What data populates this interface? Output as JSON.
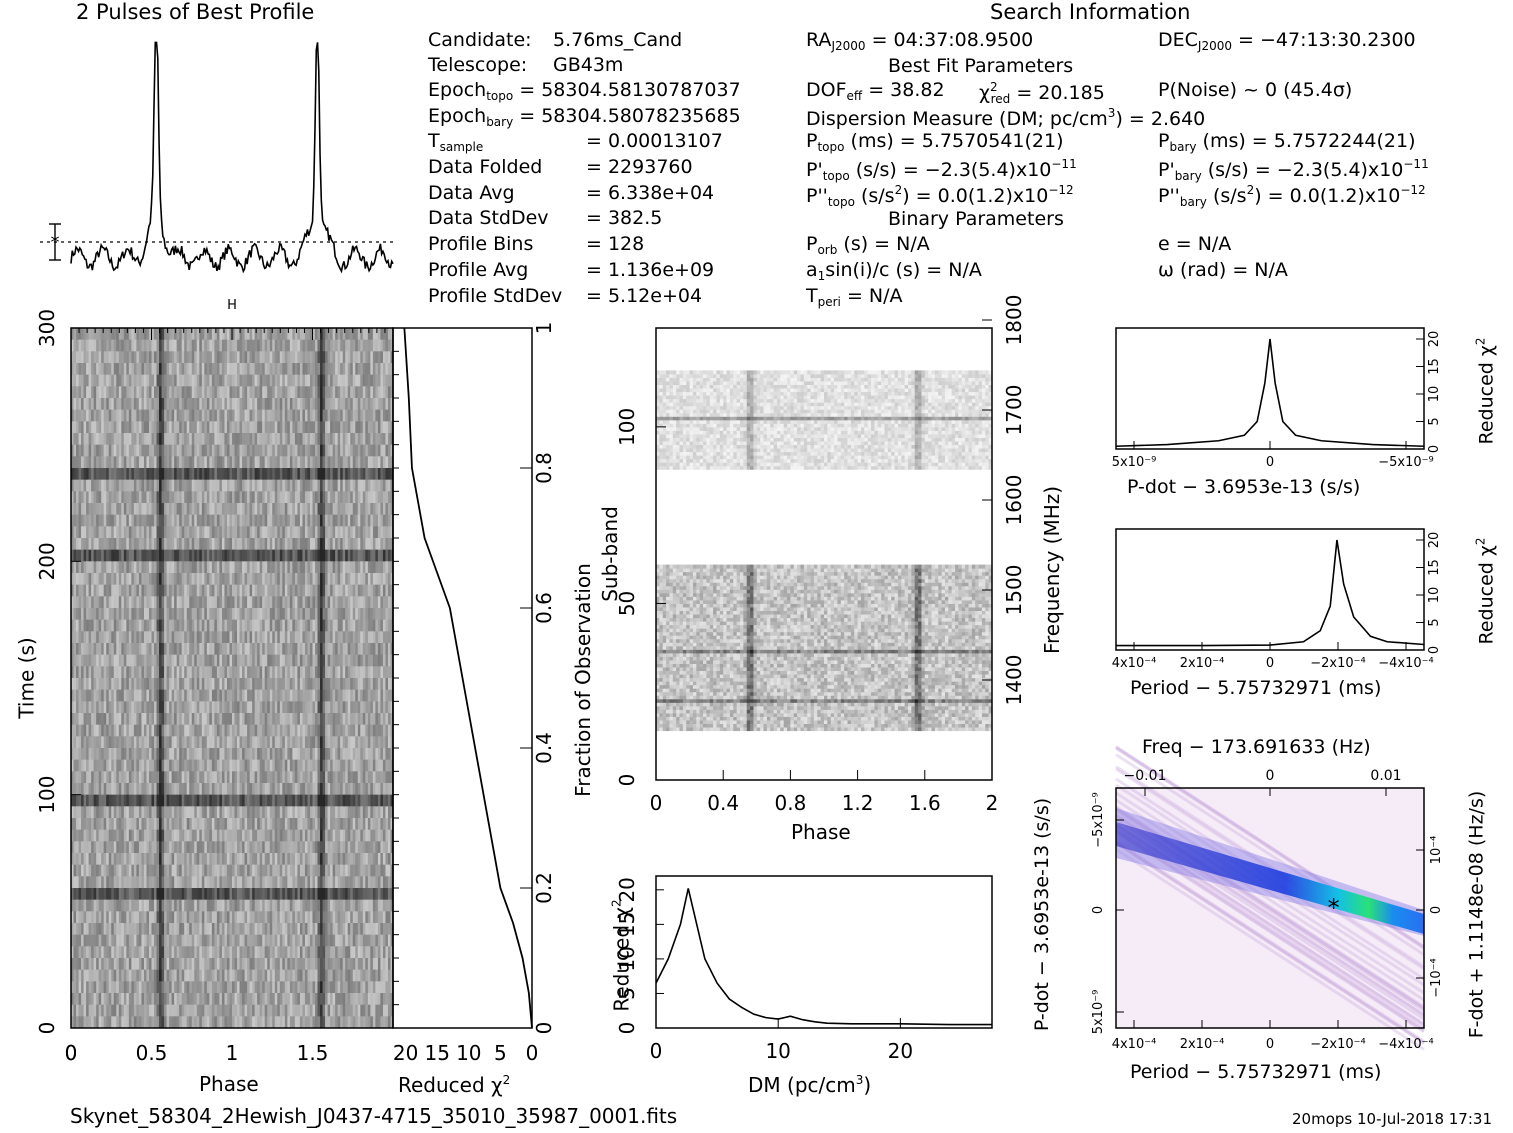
{
  "header": {
    "profile_title": "2 Pulses of Best Profile",
    "search_title": "Search Information",
    "bfp_title": "Best Fit Parameters",
    "binary_title": "Binary Parameters",
    "file_name": "Skynet_58304_2Hewish_J0437-4715_35010_35987_0001.fits",
    "footer_right": "20mops  10-Jul-2018 17:31"
  },
  "info": {
    "candidate_label": "Candidate:",
    "candidate": "5.76ms_Cand",
    "telescope_label": "Telescope:",
    "telescope": "GB43m",
    "epoch_topo_label": "Epoch",
    "epoch_topo_sub": "topo",
    "epoch_topo": "= 58304.58130787037",
    "epoch_bary_label": "Epoch",
    "epoch_bary_sub": "bary",
    "epoch_bary": "= 58304.58078235685",
    "tsample_label": "T",
    "tsample_sub": "sample",
    "tsample": "=   0.00013107",
    "folded_label": "Data Folded",
    "folded": "=   2293760",
    "avg_label": "Data Avg",
    "avg": "=   6.338e+04",
    "std_label": "Data StdDev",
    "std": "=   382.5",
    "bins_label": "Profile Bins",
    "bins": "=   128",
    "pavg_label": "Profile Avg",
    "pavg": "=   1.136e+09",
    "pstd_label": "Profile StdDev",
    "pstd": "=   5.12e+04"
  },
  "fit": {
    "ra_label": "RA",
    "ra_sub": "J2000",
    "ra": "= 04:37:08.9500",
    "dec_label": "DEC",
    "dec_sub": "J2000",
    "dec": "= −47:13:30.2300",
    "dof_label": "DOF",
    "dof_sub": "eff",
    "dof": "= 38.82",
    "chi_label": "χ",
    "chi_sup": "2",
    "chi_sub": "red",
    "chi": "= 20.185",
    "pnoise": "P(Noise) ~ 0    (45.4σ)",
    "dm_text": "Dispersion Measure (DM; pc/cm",
    "dm_sup": "3",
    "dm_val": ") = 2.640",
    "ptopo_label": "P",
    "ptopo_sub": "topo",
    "ptopo": "(ms) =  5.7570541(21)",
    "pbary_label": "P",
    "pbary_sub": "bary",
    "pbary": "(ms) =  5.7572244(21)",
    "pdtopo_label": "P'",
    "pdtopo_sub": "topo",
    "pdtopo": "(s/s) = −2.3(5.4)x10",
    "pdtopo_exp": "−11",
    "pdbary_label": "P'",
    "pdbary_sub": "bary",
    "pdbary": "(s/s) = −2.3(5.4)x10",
    "pdbary_exp": "−11",
    "pddtopo_label": "P''",
    "pddtopo_sub": "topo",
    "pddtopo": "(s/s",
    "pddtopo_sup": "2",
    "pddtopo_val": ") = 0.0(1.2)x10",
    "pddtopo_exp": "−12",
    "pddbary_label": "P''",
    "pddbary_sub": "bary",
    "pddbary": "(s/s",
    "pddbary_sup": "2",
    "pddbary_val": ") = 0.0(1.2)x10",
    "pddbary_exp": "−12",
    "porb_label": "P",
    "porb_sub": "orb",
    "porb": "(s) = N/A",
    "e": "e = N/A",
    "a1_label": "a",
    "a1_sub": "1",
    "a1": "sin(i)/c (s) = N/A",
    "omega": "ω (rad) = N/A",
    "tperi_label": "T",
    "tperi_sub": "peri",
    "tperi": "= N/A"
  },
  "axes": {
    "phase_label": "Phase",
    "time_label": "Time (s)",
    "redchi_label": "Reduced χ",
    "redchi_sup": "2",
    "frac_label": "Fraction of Observation",
    "subband_label": "Sub-band",
    "freq_label": "Frequency (MHz)",
    "dm_label": "DM (pc/cm",
    "dm_sup": "3",
    "pdot_label": "P-dot − 3.6953e-13 (s/s)",
    "period_label": "Period − 5.75732971 (ms)",
    "freq_top_label": "Freq − 173.691633 (Hz)",
    "fdot_label": "F-dot + 1.1148e-08 (Hz/s)"
  },
  "colors": {
    "ink": "#000000",
    "heat_low": "#f6ecf8",
    "heat_mid": "#3a3ad6",
    "heat_high": "#22e07a"
  },
  "chart_data": [
    {
      "type": "line",
      "title": "2 Pulses of Best Profile",
      "x": [
        0,
        0.25,
        0.45,
        0.5,
        0.52,
        0.55,
        0.6,
        0.75,
        1.0,
        1.25,
        1.45,
        1.5,
        1.52,
        1.55,
        1.6,
        1.75,
        2.0
      ],
      "y": [
        0.1,
        0.12,
        0.25,
        0.7,
        1.0,
        0.7,
        0.28,
        0.05,
        0.1,
        0.12,
        0.25,
        0.7,
        1.0,
        0.7,
        0.28,
        0.05,
        0.1
      ],
      "xlim": [
        0,
        2
      ],
      "ylim": [
        0,
        1.1
      ],
      "grid": false
    },
    {
      "type": "heatmap",
      "title": "",
      "xlabel": "Phase",
      "ylabel": "Time (s)",
      "xlim": [
        0,
        2
      ],
      "ylim": [
        0,
        300
      ],
      "x_ticks": [
        "0",
        "0.5",
        "1",
        "1.5"
      ],
      "y_ticks": [
        "0",
        "100",
        "200",
        "300"
      ],
      "pulse_phases": [
        0.55,
        1.55
      ]
    },
    {
      "type": "line",
      "title": "",
      "xlabel": "Reduced χ²",
      "ylabel": "Fraction of Observation",
      "x_ticks": [
        "20",
        "15",
        "10",
        "5",
        "0"
      ],
      "y_ticks": [
        "0",
        "0.2",
        "0.4",
        "0.6",
        "0.8",
        "1"
      ],
      "xlim": [
        22,
        0
      ],
      "ylim": [
        0,
        1
      ],
      "x": [
        0,
        0.5,
        1.5,
        3,
        5,
        6,
        7,
        8,
        9,
        10,
        11,
        12,
        13,
        15,
        17,
        18,
        19,
        19.5,
        20.2
      ],
      "y": [
        0,
        0.05,
        0.1,
        0.15,
        0.2,
        0.25,
        0.3,
        0.35,
        0.4,
        0.45,
        0.5,
        0.55,
        0.6,
        0.65,
        0.7,
        0.75,
        0.8,
        0.9,
        1.0
      ]
    },
    {
      "type": "heatmap",
      "title": "",
      "xlabel": "Phase",
      "ylabel": "Sub-band",
      "y2label": "Frequency (MHz)",
      "xlim": [
        0,
        2
      ],
      "ylim": [
        0,
        128
      ],
      "x_ticks": [
        "0",
        "0.4",
        "0.8",
        "1.2",
        "1.6",
        "2"
      ],
      "y_ticks": [
        "0",
        "50",
        "100"
      ],
      "y2_ticks": [
        "1400",
        "1500",
        "1600",
        "1700",
        "1800"
      ],
      "bands": [
        [
          14,
          60
        ],
        [
          88,
          115
        ]
      ],
      "pulse_phases": [
        0.55,
        1.55
      ]
    },
    {
      "type": "line",
      "title": "",
      "xlabel": "DM (pc/cm³)",
      "ylabel": "Reduced χ²",
      "xlim": [
        0,
        27.5
      ],
      "ylim": [
        0,
        22
      ],
      "x_ticks": [
        "0",
        "10",
        "20"
      ],
      "y_ticks": [
        "0",
        "5",
        "10",
        "15",
        "20"
      ],
      "x": [
        0,
        1,
        2,
        2.64,
        3.2,
        4,
        5,
        6,
        7,
        8,
        9,
        10,
        11,
        12,
        13,
        14,
        16,
        20,
        24,
        27.5
      ],
      "y": [
        6.5,
        10,
        15,
        20.2,
        16,
        10,
        6.5,
        4.2,
        3,
        2,
        1.5,
        1.3,
        1.7,
        1.2,
        0.9,
        0.7,
        0.6,
        0.6,
        0.5,
        0.5
      ]
    },
    {
      "type": "line",
      "title": "",
      "xlabel": "P-dot − 3.6953e-13 (s/s)",
      "ylabel": "Reduced χ²",
      "x_ticks": [
        "5x10⁻⁹",
        "0",
        "−5x10⁻⁹"
      ],
      "y_ticks": [
        "0",
        "5",
        "10",
        "15",
        "20"
      ],
      "xlim": [
        6e-09,
        -6e-09
      ],
      "ylim": [
        0,
        22
      ],
      "x": [
        6e-09,
        4e-09,
        2e-09,
        1e-09,
        5e-10,
        2e-10,
        0,
        -2e-10,
        -5e-10,
        -1e-09,
        -2e-09,
        -4e-09,
        -6e-09
      ],
      "y": [
        0.5,
        0.8,
        1.5,
        2.5,
        5,
        12,
        20,
        12,
        5,
        2.5,
        1.5,
        0.8,
        0.5
      ]
    },
    {
      "type": "line",
      "title": "",
      "xlabel": "Period − 5.75732971 (ms)",
      "ylabel": "Reduced χ²",
      "x_ticks": [
        "4x10⁻⁴",
        "2x10⁻⁴",
        "0",
        "−2x10⁻⁴",
        "−4x10⁻⁴"
      ],
      "y_ticks": [
        "0",
        "5",
        "10",
        "15",
        "20"
      ],
      "xlim": [
        0.00046,
        -0.00046
      ],
      "ylim": [
        0,
        22
      ],
      "x": [
        0.00046,
        0.0002,
        0,
        -0.0001,
        -0.00015,
        -0.00018,
        -0.0002,
        -0.00022,
        -0.00025,
        -0.0003,
        -0.00035,
        -0.00046
      ],
      "y": [
        0.8,
        0.8,
        0.9,
        1.5,
        3.5,
        8,
        20,
        12,
        6,
        2.5,
        1.5,
        1
      ]
    },
    {
      "type": "heatmap",
      "title": "Freq − 173.691633 (Hz)",
      "xlabel": "Period − 5.75732971 (ms)",
      "ylabel": "P-dot − 3.6953e-13 (s/s)",
      "y2label": "F-dot + 1.1148e-08 (Hz/s)",
      "x_ticks": [
        "4x10⁻⁴",
        "2x10⁻⁴",
        "0",
        "−2x10⁻⁴",
        "−4x10⁻⁴"
      ],
      "x2_ticks": [
        "−0.01",
        "0",
        "0.01"
      ],
      "y_ticks": [
        "−5x10⁻⁹",
        "0",
        "5x10⁻⁹"
      ],
      "y2_ticks": [
        "10⁻⁴",
        "0",
        "−10⁻⁴"
      ],
      "best_point": [
        -0.00019,
        0
      ]
    }
  ]
}
